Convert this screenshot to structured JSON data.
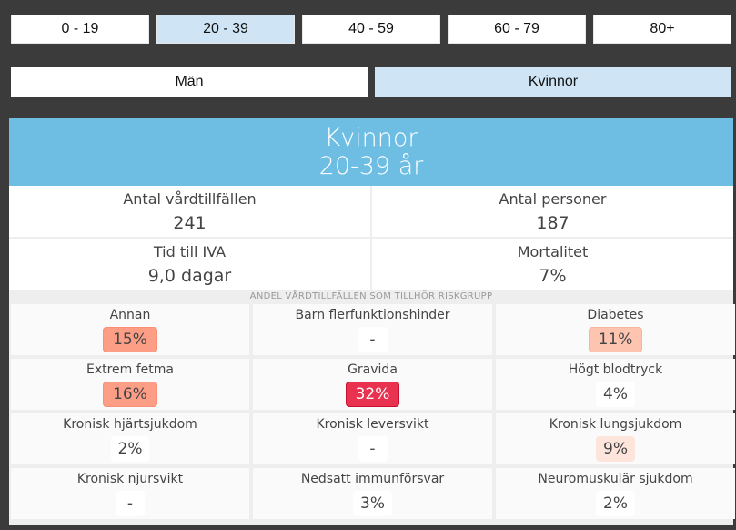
{
  "age_groups": [
    {
      "label": "0 - 19",
      "active": false
    },
    {
      "label": "20 - 39",
      "active": true
    },
    {
      "label": "40 - 59",
      "active": false
    },
    {
      "label": "60 - 79",
      "active": false
    },
    {
      "label": "80+",
      "active": false
    }
  ],
  "sex": [
    {
      "label": "Män",
      "active": false
    },
    {
      "label": "Kvinnor",
      "active": true
    }
  ],
  "header": {
    "title": "Kvinnor",
    "subtitle": "20-39 år",
    "color": "#6ebee4"
  },
  "stats": [
    {
      "label": "Antal vårdtillfällen",
      "value": "241"
    },
    {
      "label": "Antal personer",
      "value": "187"
    },
    {
      "label": "Tid till IVA",
      "value": "9,0 dagar"
    },
    {
      "label": "Mortalitet",
      "value": "7%"
    }
  ],
  "risk_section_title": "ANDEL VÅRDTILLFÄLLEN SOM TILLHÖR RISKGRUPP",
  "risk_groups": [
    {
      "label": "Annan",
      "value": "15%",
      "level": "high"
    },
    {
      "label": "Barn flerfunktionshinder",
      "value": "-",
      "level": "none"
    },
    {
      "label": "Diabetes",
      "value": "11%",
      "level": "mid"
    },
    {
      "label": "Extrem fetma",
      "value": "16%",
      "level": "high"
    },
    {
      "label": "Gravida",
      "value": "32%",
      "level": "max"
    },
    {
      "label": "Högt blodtryck",
      "value": "4%",
      "level": "none"
    },
    {
      "label": "Kronisk hjärtsjukdom",
      "value": "2%",
      "level": "none"
    },
    {
      "label": "Kronisk leversvikt",
      "value": "-",
      "level": "none"
    },
    {
      "label": "Kronisk lungsjukdom",
      "value": "9%",
      "level": "low"
    },
    {
      "label": "Kronisk njursvikt",
      "value": "-",
      "level": "none"
    },
    {
      "label": "Nedsatt immunförsvar",
      "value": "3%",
      "level": "none"
    },
    {
      "label": "Neuromuskulär sjukdom",
      "value": "2%",
      "level": "none"
    }
  ]
}
